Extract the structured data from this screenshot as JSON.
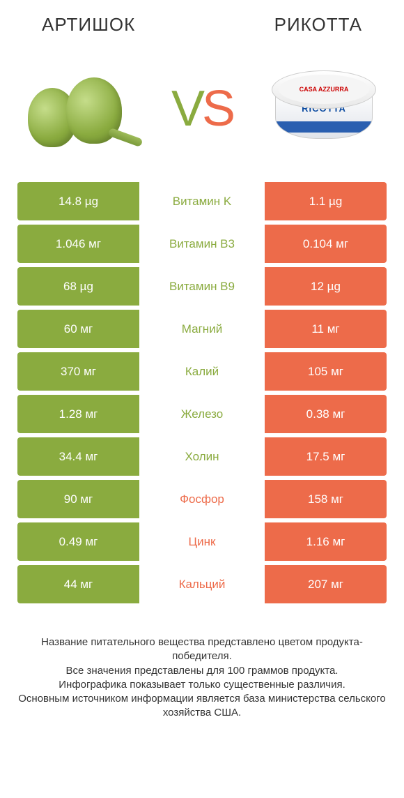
{
  "colors": {
    "green": "#8aab3f",
    "orange": "#ed6b4a",
    "text": "#333333"
  },
  "header": {
    "left": "АРТИШОК",
    "right": "РИКОТТА"
  },
  "vs": {
    "v": "V",
    "s": "S"
  },
  "ricotta": {
    "brand": "CASA AZZURRA",
    "name": "RICOTTA"
  },
  "rows": [
    {
      "left": "14.8 µg",
      "mid": "Витамин K",
      "right": "1.1 µg",
      "winner": "left"
    },
    {
      "left": "1.046 мг",
      "mid": "Витамин B3",
      "right": "0.104 мг",
      "winner": "left"
    },
    {
      "left": "68 µg",
      "mid": "Витамин B9",
      "right": "12 µg",
      "winner": "left"
    },
    {
      "left": "60 мг",
      "mid": "Магний",
      "right": "11 мг",
      "winner": "left"
    },
    {
      "left": "370 мг",
      "mid": "Калий",
      "right": "105 мг",
      "winner": "left"
    },
    {
      "left": "1.28 мг",
      "mid": "Железо",
      "right": "0.38 мг",
      "winner": "left"
    },
    {
      "left": "34.4 мг",
      "mid": "Холин",
      "right": "17.5 мг",
      "winner": "left"
    },
    {
      "left": "90 мг",
      "mid": "Фосфор",
      "right": "158 мг",
      "winner": "right"
    },
    {
      "left": "0.49 мг",
      "mid": "Цинк",
      "right": "1.16 мг",
      "winner": "right"
    },
    {
      "left": "44 мг",
      "mid": "Кальций",
      "right": "207 мг",
      "winner": "right"
    }
  ],
  "footer": {
    "line1": "Название питательного вещества представлено цветом продукта-победителя.",
    "line2": "Все значения представлены для 100 граммов продукта.",
    "line3": "Инфографика показывает только существенные различия.",
    "line4": "Основным источником информации является база министерства сельского хозяйства США."
  }
}
